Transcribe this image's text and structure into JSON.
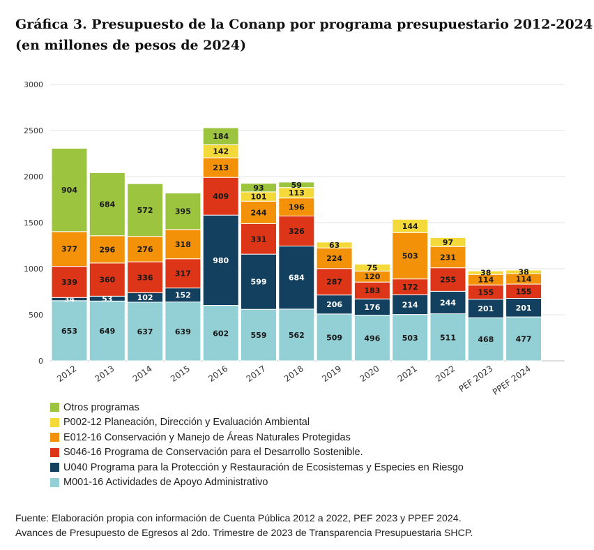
{
  "title": {
    "line1": "Gráfica 3. Presupuesto de la Conanp por programa presupuestario 2012-2024",
    "line2": "(en millones de pesos de 2024)"
  },
  "chart_data": {
    "type": "bar",
    "stacked": true,
    "title": "Gráfica 3. Presupuesto de la Conanp por programa presupuestario 2012-2024 (en millones de pesos de 2024)",
    "xlabel": "",
    "ylabel": "",
    "ylim": [
      0,
      3000
    ],
    "yticks": [
      0,
      500,
      1000,
      1500,
      2000,
      2500,
      3000
    ],
    "grid": true,
    "legend_position": "bottom",
    "categories": [
      "2012",
      "2013",
      "2014",
      "2015",
      "2016",
      "2017",
      "2018",
      "2019",
      "2020",
      "2021",
      "2022",
      "PEF 2023",
      "PPEF 2024"
    ],
    "series": [
      {
        "name": "M001-16 Actividades de Apoyo Administrativo",
        "color": "#93d0d5",
        "label_color": "#1a1a1a",
        "values": [
          653,
          649,
          637,
          639,
          602,
          559,
          562,
          509,
          496,
          503,
          511,
          468,
          477
        ]
      },
      {
        "name": "U040 Programa para la Protección y Restauración de Ecosistemas y Especies en Riesgo",
        "color": "#12405e",
        "label_color": "#ffffff",
        "values": [
          34,
          53,
          102,
          152,
          980,
          599,
          684,
          206,
          176,
          214,
          244,
          201,
          201
        ]
      },
      {
        "name": "S046-16 Programa de Conservación para el Desarrollo Sostenible.",
        "color": "#dc3517",
        "label_color": "#1a1a1a",
        "values": [
          339,
          360,
          336,
          317,
          409,
          331,
          326,
          287,
          183,
          172,
          255,
          155,
          155
        ]
      },
      {
        "name": "E012-16 Conservación y Manejo de Áreas Naturales Protegidas",
        "color": "#f39208",
        "label_color": "#1a1a1a",
        "values": [
          377,
          296,
          276,
          318,
          213,
          244,
          196,
          224,
          120,
          503,
          231,
          114,
          114
        ]
      },
      {
        "name": "P002-12 Planeación, Dirección y Evaluación Ambiental",
        "color": "#f4d93b",
        "label_color": "#1a1a1a",
        "values": [
          null,
          null,
          null,
          null,
          142,
          101,
          113,
          63,
          75,
          144,
          97,
          38,
          38
        ]
      },
      {
        "name": "Otros programas",
        "color": "#9cc43f",
        "label_color": "#1a1a1a",
        "values": [
          904,
          684,
          572,
          395,
          184,
          93,
          59,
          null,
          null,
          null,
          null,
          null,
          null
        ]
      }
    ]
  },
  "legend": [
    {
      "label": "Otros programas",
      "color": "#9cc43f"
    },
    {
      "label": "P002-12 Planeación, Dirección y Evaluación Ambiental",
      "color": "#f4d93b"
    },
    {
      "label": "E012-16 Conservación y Manejo de Áreas Naturales Protegidas",
      "color": "#f39208"
    },
    {
      "label": "S046-16 Programa de Conservación para el Desarrollo Sostenible.",
      "color": "#dc3517"
    },
    {
      "label": "U040 Programa para la Protección y Restauración de Ecosistemas y Especies en Riesgo",
      "color": "#12405e"
    },
    {
      "label": "M001-16 Actividades de Apoyo Administrativo",
      "color": "#93d0d5"
    }
  ],
  "source": {
    "line1": "Fuente: Elaboración propia con información de Cuenta Pública 2012 a 2022, PEF 2023 y PPEF 2024.",
    "line2": "Avances de Presupuesto de Egresos al 2do. Trimestre de 2023 de Transparencia Presupuestaria SHCP."
  }
}
